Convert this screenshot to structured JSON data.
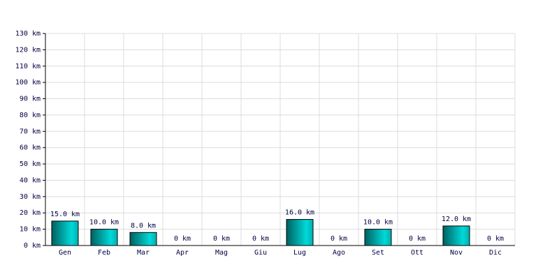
{
  "chart_data": {
    "type": "bar",
    "categories": [
      "Gen",
      "Feb",
      "Mar",
      "Apr",
      "Mag",
      "Giu",
      "Lug",
      "Ago",
      "Set",
      "Ott",
      "Nov",
      "Dic"
    ],
    "values": [
      15,
      10,
      8,
      0,
      0,
      0,
      16,
      0,
      10,
      0,
      12,
      0
    ],
    "value_labels": [
      "15.0 km",
      "10.0 km",
      "8.0 km",
      "0 km",
      "0 km",
      "0 km",
      "16.0 km",
      "0 km",
      "10.0 km",
      "0 km",
      "12.0 km",
      "0 km"
    ],
    "color": "#00d8d8",
    "ylim": [
      0,
      130
    ],
    "yticks": [
      {
        "value": 0,
        "label": "0 km"
      },
      {
        "value": 10,
        "label": "10 km"
      },
      {
        "value": 20,
        "label": "20 km"
      },
      {
        "value": 30,
        "label": "30 km"
      },
      {
        "value": 40,
        "label": "40 km"
      },
      {
        "value": 50,
        "label": "50 km"
      },
      {
        "value": 60,
        "label": "60 km"
      },
      {
        "value": 70,
        "label": "70 km"
      },
      {
        "value": 80,
        "label": "80 km"
      },
      {
        "value": 90,
        "label": "90 km"
      },
      {
        "value": 100,
        "label": "100 km"
      },
      {
        "value": 110,
        "label": "110 km"
      },
      {
        "value": 120,
        "label": "120 km"
      },
      {
        "value": 130,
        "label": "130 km"
      }
    ],
    "grid": true
  }
}
